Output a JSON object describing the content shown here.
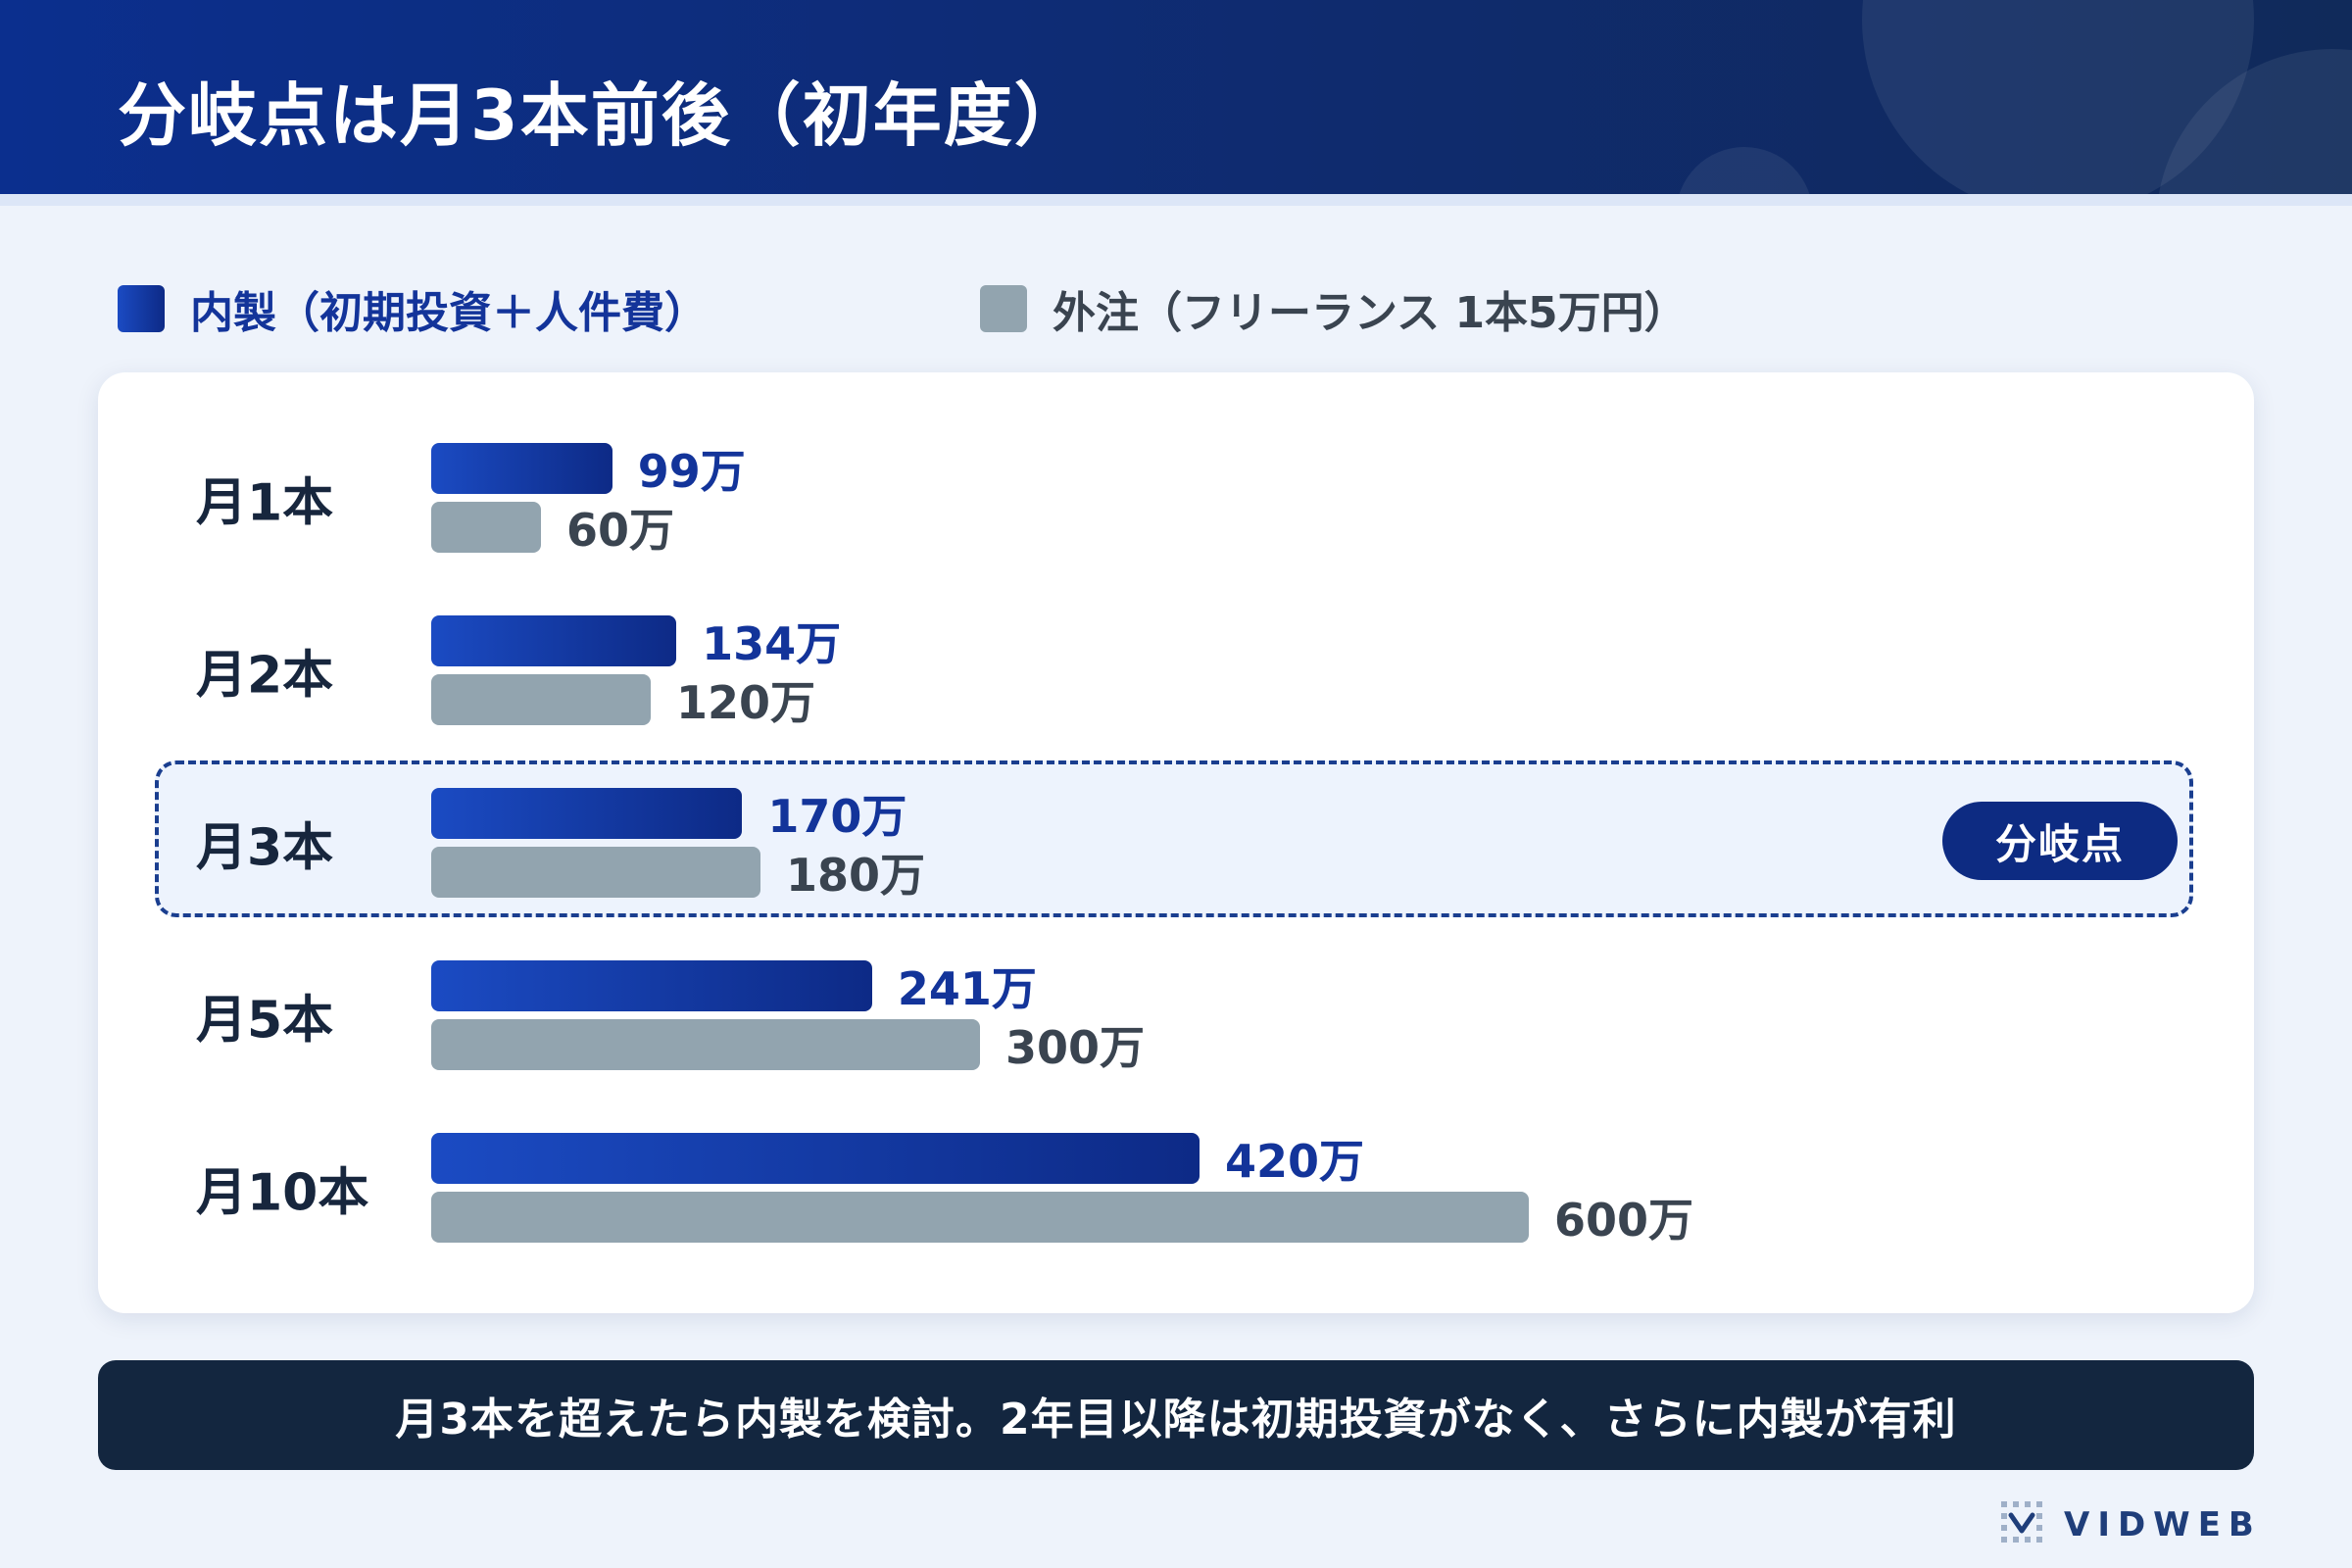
{
  "header": {
    "title": "分岐点は月3本前後（初年度）"
  },
  "legend": [
    {
      "label": "内製（初期投資＋人件費）",
      "color": "#1b4bc3"
    },
    {
      "label": "外注（フリーランス 1本5万円）",
      "color": "#92a4af"
    }
  ],
  "badge": {
    "label": "分岐点",
    "row_index": 2
  },
  "chart_data": {
    "type": "bar",
    "orientation": "horizontal",
    "categories": [
      "月1本",
      "月2本",
      "月3本",
      "月5本",
      "月10本"
    ],
    "series": [
      {
        "name": "内製（初期投資＋人件費）",
        "values": [
          99,
          134,
          170,
          241,
          420
        ],
        "labels": [
          "99万",
          "134万",
          "170万",
          "241万",
          "420万"
        ],
        "color": "#1b4bc3"
      },
      {
        "name": "外注（フリーランス 1本5万円）",
        "values": [
          60,
          120,
          180,
          300,
          600
        ],
        "labels": [
          "60万",
          "120万",
          "180万",
          "300万",
          "600万"
        ],
        "color": "#92a4af"
      }
    ],
    "title": "分岐点は月3本前後（初年度）",
    "grid": false,
    "legend": "top-left"
  },
  "footer": {
    "text": "月3本を超えたら内製を検討。2年目以降は初期投資がなく、さらに内製が有利"
  },
  "brand": {
    "name": "VIDWEB"
  }
}
